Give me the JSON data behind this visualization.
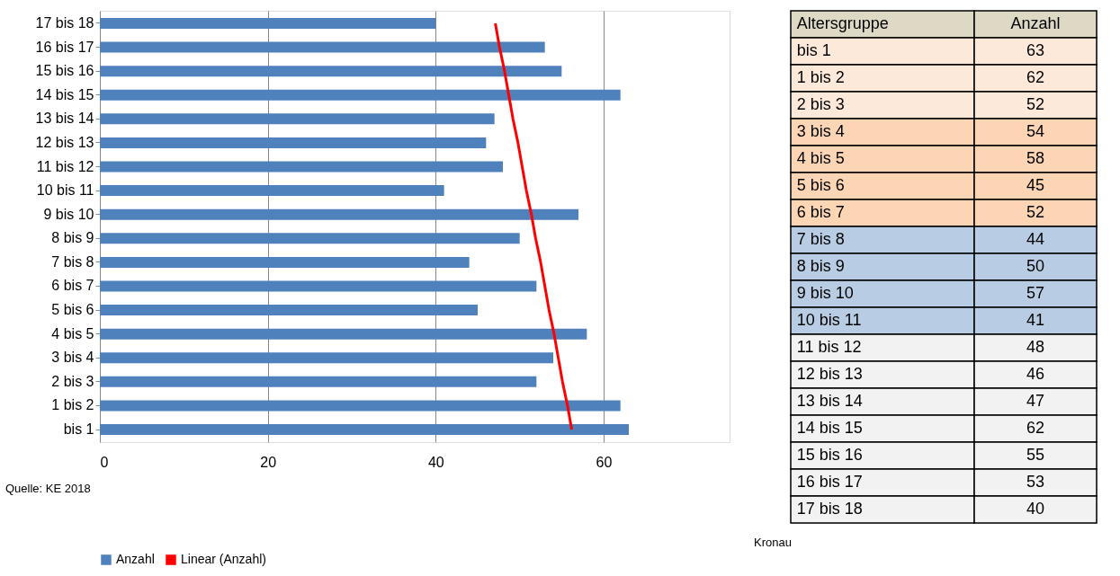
{
  "chart_data": [
    {
      "type": "bar",
      "orientation": "horizontal",
      "categories": [
        "17 bis 18",
        "16 bis 17",
        "15 bis 16",
        "14 bis 15",
        "13 bis 14",
        "12 bis 13",
        "11 bis 12",
        "10 bis 11",
        "9 bis 10",
        "8 bis 9",
        "7 bis 8",
        "6 bis 7",
        "5 bis 6",
        "4 bis 5",
        "3 bis 4",
        "2 bis 3",
        "1 bis 2",
        "bis 1"
      ],
      "series": [
        {
          "name": "Anzahl",
          "color": "#4f81bd",
          "values": [
            40,
            53,
            55,
            62,
            47,
            46,
            48,
            41,
            57,
            50,
            44,
            52,
            45,
            58,
            54,
            52,
            62,
            63
          ]
        },
        {
          "name": "Linear (Anzahl)",
          "type": "line",
          "color": "#ff0000",
          "values": [
            47.1,
            47.6,
            48.2,
            48.7,
            49.2,
            49.8,
            50.3,
            50.8,
            51.4,
            51.9,
            52.5,
            53.0,
            53.5,
            54.1,
            54.6,
            55.1,
            55.7,
            56.2
          ]
        }
      ],
      "xlim": [
        0,
        75
      ],
      "xticks": [
        0,
        20,
        40,
        60
      ],
      "grid": "x",
      "legend": "bottom",
      "annotations": [
        "Quelle: KE 2018"
      ]
    },
    {
      "type": "other",
      "categories": [
        "bis 1",
        "1 bis 2",
        "2 bis 3",
        "3 bis 4",
        "4 bis 5",
        "5 bis 6",
        " 6 bis 7",
        "7 bis 8",
        "8 bis 9",
        "9 bis 10",
        "10 bis 11",
        "11 bis 12",
        "12 bis 13",
        "13 bis 14",
        "14 bis 15",
        "15 bis 16",
        "16 bis 17",
        "17 bis 18"
      ],
      "values": [
        63,
        62,
        52,
        54,
        58,
        45,
        52,
        44,
        50,
        57,
        41,
        48,
        46,
        47,
        62,
        55,
        53,
        40
      ],
      "data_labels": true,
      "annotations": [
        "Altersgruppe",
        "Anzahl",
        "Kronau"
      ]
    }
  ]
}
